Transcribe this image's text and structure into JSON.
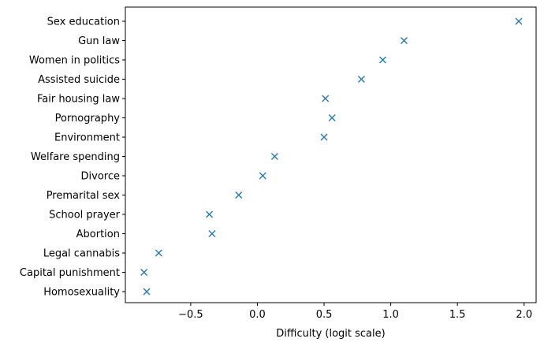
{
  "chart_data": {
    "type": "scatter",
    "title": "",
    "xlabel": "Difficulty (logit scale)",
    "ylabel": "",
    "xlim": [
      -0.99,
      2.09
    ],
    "x_ticks": [
      -0.5,
      0.0,
      0.5,
      1.0,
      1.5,
      2.0
    ],
    "x_tick_labels": [
      "−0.5",
      "0.0",
      "0.5",
      "1.0",
      "1.5",
      "2.0"
    ],
    "marker": "x",
    "marker_color": "#1f77b4",
    "grid": false,
    "legend": "none",
    "points": [
      {
        "label": "Sex education",
        "x": 1.96
      },
      {
        "label": "Gun law",
        "x": 1.1
      },
      {
        "label": "Women in politics",
        "x": 0.94
      },
      {
        "label": "Assisted suicide",
        "x": 0.78
      },
      {
        "label": "Fair housing law",
        "x": 0.51
      },
      {
        "label": "Pornography",
        "x": 0.56
      },
      {
        "label": "Environment",
        "x": 0.5
      },
      {
        "label": "Welfare spending",
        "x": 0.13
      },
      {
        "label": "Divorce",
        "x": 0.04
      },
      {
        "label": "Premarital sex",
        "x": -0.14
      },
      {
        "label": "School prayer",
        "x": -0.36
      },
      {
        "label": "Abortion",
        "x": -0.34
      },
      {
        "label": "Legal cannabis",
        "x": -0.74
      },
      {
        "label": "Capital punishment",
        "x": -0.85
      },
      {
        "label": "Homosexuality",
        "x": -0.83
      }
    ]
  }
}
